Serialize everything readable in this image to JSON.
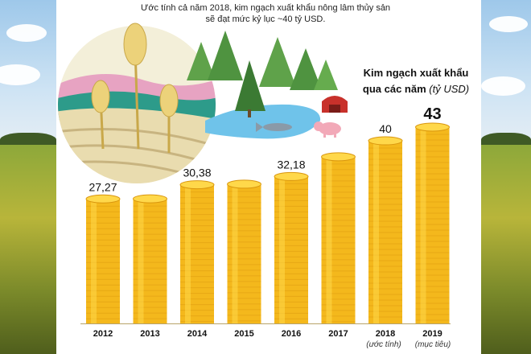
{
  "header": {
    "line1": "Ước tính cả năm 2018, kim ngạch xuất khẩu nông lâm thủy sản",
    "line2": "sẽ đạt mức kỷ lục ~40 tỷ USD."
  },
  "chart_title": {
    "line1": "Kim ngạch xuất khẩu",
    "line2_main": "qua các năm ",
    "line2_unit": "(tỷ USD)"
  },
  "footnotes": {
    "y2018": "(ước tính)",
    "y2019": "(mục tiêu)"
  },
  "colors": {
    "coin_light": "#ffd84a",
    "coin_mid": "#f4b81c",
    "coin_dark": "#d9960e",
    "label": "#111111"
  },
  "illustration": [
    "wheat-icon",
    "pine-tree-icon",
    "fish-icon",
    "pig-icon",
    "barn-icon",
    "landscape"
  ],
  "chart_data": {
    "type": "bar",
    "categories": [
      "2012",
      "2013",
      "2014",
      "2015",
      "2016",
      "2017",
      "2018",
      "2019"
    ],
    "values": [
      27.27,
      27.3,
      30.38,
      30.5,
      32.18,
      36.5,
      40,
      43
    ],
    "labels": [
      "27,27",
      "",
      "30,38",
      "",
      "32,18",
      "",
      "40",
      "43"
    ],
    "title": "Kim ngạch xuất khẩu qua các năm (tỷ USD)",
    "xlabel": "",
    "ylabel": "",
    "ylim": [
      0,
      43
    ]
  }
}
